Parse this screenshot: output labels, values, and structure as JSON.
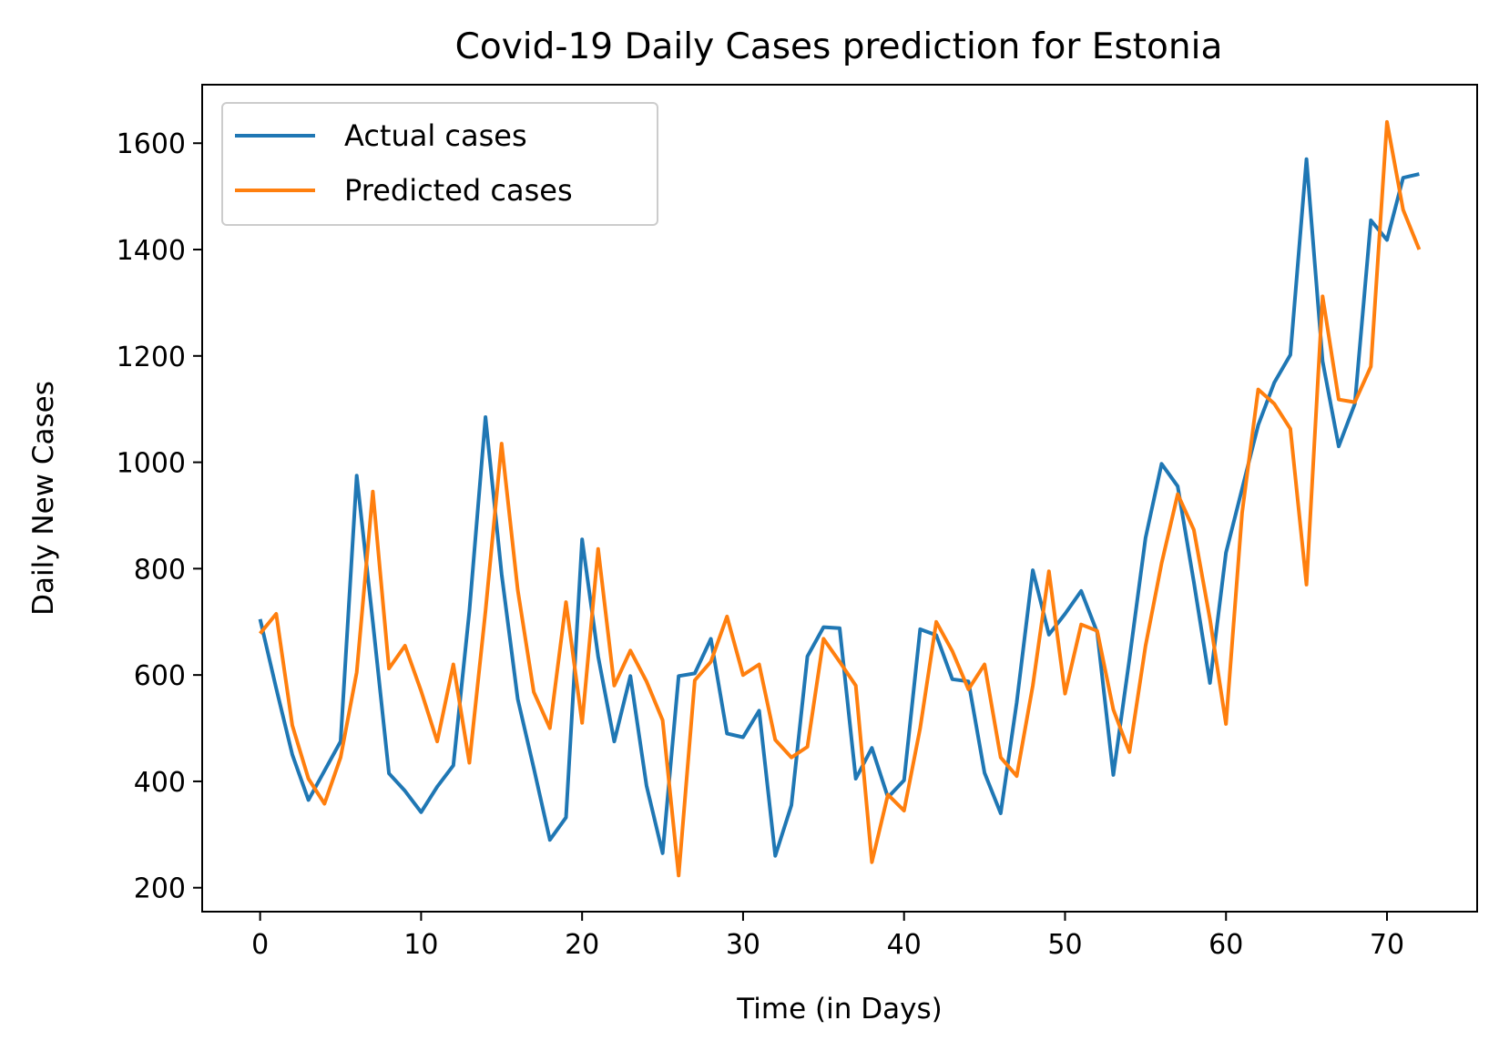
{
  "chart_data": {
    "type": "line",
    "title": "Covid-19 Daily Cases prediction for Estonia",
    "xlabel": "Time (in Days)",
    "ylabel": "Daily New Cases",
    "xlim": [
      -3.6,
      75.6
    ],
    "ylim": [
      155,
      1710
    ],
    "xticks": [
      0,
      10,
      20,
      30,
      40,
      50,
      60,
      70
    ],
    "yticks": [
      200,
      400,
      600,
      800,
      1000,
      1200,
      1400,
      1600
    ],
    "grid": false,
    "legend_position": "top-left",
    "x": [
      0,
      1,
      2,
      3,
      4,
      5,
      6,
      7,
      8,
      9,
      10,
      11,
      12,
      13,
      14,
      15,
      16,
      17,
      18,
      19,
      20,
      21,
      22,
      23,
      24,
      25,
      26,
      27,
      28,
      29,
      30,
      31,
      32,
      33,
      34,
      35,
      36,
      37,
      38,
      39,
      40,
      41,
      42,
      43,
      44,
      45,
      46,
      47,
      48,
      49,
      50,
      51,
      52,
      53,
      54,
      55,
      56,
      57,
      58,
      59,
      60,
      61,
      62,
      63,
      64,
      65,
      66,
      67,
      68,
      69,
      70,
      71,
      72
    ],
    "series": [
      {
        "name": "Actual cases",
        "color": "#1f77b4",
        "values": [
          705,
          575,
          450,
          365,
          420,
          475,
          975,
          700,
          415,
          382,
          342,
          390,
          430,
          720,
          1085,
          790,
          555,
          425,
          290,
          332,
          855,
          635,
          475,
          598,
          392,
          265,
          598,
          603,
          668,
          490,
          483,
          533,
          260,
          355,
          635,
          690,
          688,
          405,
          463,
          370,
          402,
          686,
          675,
          592,
          588,
          416,
          340,
          548,
          797,
          676,
          715,
          758,
          680,
          412,
          630,
          858,
          997,
          955,
          775,
          585,
          830,
          950,
          1070,
          1150,
          1202,
          1570,
          1190,
          1030,
          1110,
          1455,
          1418,
          1535,
          1542
        ]
      },
      {
        "name": "Predicted cases",
        "color": "#ff7f0e",
        "values": [
          678,
          715,
          505,
          405,
          358,
          445,
          605,
          945,
          612,
          655,
          570,
          475,
          620,
          435,
          720,
          1035,
          760,
          568,
          500,
          737,
          510,
          837,
          580,
          646,
          588,
          515,
          223,
          590,
          625,
          710,
          600,
          620,
          478,
          445,
          465,
          668,
          625,
          580,
          248,
          375,
          345,
          500,
          700,
          645,
          573,
          620,
          445,
          410,
          580,
          795,
          565,
          695,
          683,
          535,
          455,
          655,
          810,
          940,
          873,
          705,
          508,
          905,
          1137,
          1110,
          1063,
          770,
          1312,
          1118,
          1113,
          1180,
          1640,
          1475,
          1400
        ]
      }
    ]
  }
}
